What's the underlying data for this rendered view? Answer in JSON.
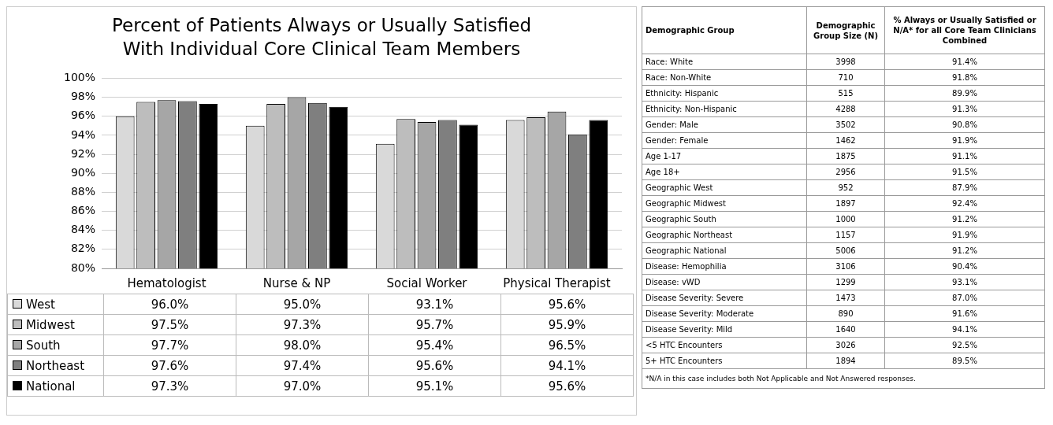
{
  "chart_data": [
    {
      "type": "bar",
      "title": "Percent of Patients Always or Usually Satisfied With Individual Core Clinical Team Members",
      "categories": [
        "Hematologist",
        "Nurse & NP",
        "Social Worker",
        "Physical Therapist"
      ],
      "series": [
        {
          "name": "West",
          "color": "#d9d9d9",
          "values": [
            96.0,
            95.0,
            93.1,
            95.6
          ],
          "value_labels": [
            "96.0%",
            "95.0%",
            "93.1%",
            "95.6%"
          ]
        },
        {
          "name": "Midwest",
          "color": "#bdbdbd",
          "values": [
            97.5,
            97.3,
            95.7,
            95.9
          ],
          "value_labels": [
            "97.5%",
            "97.3%",
            "95.7%",
            "95.9%"
          ]
        },
        {
          "name": "South",
          "color": "#a6a6a6",
          "values": [
            97.7,
            98.0,
            95.4,
            96.5
          ],
          "value_labels": [
            "97.7%",
            "98.0%",
            "95.4%",
            "96.5%"
          ]
        },
        {
          "name": "Northeast",
          "color": "#7f7f7f",
          "values": [
            97.6,
            97.4,
            95.6,
            94.1
          ],
          "value_labels": [
            "97.6%",
            "97.4%",
            "95.6%",
            "94.1%"
          ]
        },
        {
          "name": "National",
          "color": "#000000",
          "values": [
            97.3,
            97.0,
            95.1,
            95.6
          ],
          "value_labels": [
            "97.3%",
            "97.0%",
            "95.1%",
            "95.6%"
          ]
        }
      ],
      "ylim": [
        80,
        100
      ],
      "yticks": [
        {
          "value": 80,
          "label": "80%"
        },
        {
          "value": 82,
          "label": "82%"
        },
        {
          "value": 84,
          "label": "84%"
        },
        {
          "value": 86,
          "label": "86%"
        },
        {
          "value": 88,
          "label": "88%"
        },
        {
          "value": 90,
          "label": "90%"
        },
        {
          "value": 92,
          "label": "92%"
        },
        {
          "value": 94,
          "label": "94%"
        },
        {
          "value": 96,
          "label": "96%"
        },
        {
          "value": 98,
          "label": "98%"
        },
        {
          "value": 100,
          "label": "100%"
        }
      ],
      "grid": "y",
      "legend": "bottom",
      "data_labels": true
    },
    {
      "type": "other",
      "xlabel": "Demographic Group",
      "categories": [
        "Race: White",
        "Race: Non-White",
        "Ethnicity: Hispanic",
        "Ethnicity: Non-Hispanic",
        "Gender: Male",
        "Gender: Female",
        "Age 1-17",
        "Age 18+",
        "Geographic West",
        "Geographic Midwest",
        "Geographic South",
        "Geographic Northeast",
        "Geographic National",
        "Disease: Hemophilia",
        "Disease: vWD",
        "Disease Severity: Severe",
        "Disease Severity: Moderate",
        "Disease Severity: Mild",
        "<5 HTC Encounters",
        "5+ HTC Encounters"
      ],
      "series": [
        {
          "name": "Demographic Group Size (N)",
          "values": [
            3998,
            710,
            515,
            4288,
            3502,
            1462,
            1875,
            2956,
            952,
            1897,
            1000,
            1157,
            5006,
            3106,
            1299,
            1473,
            890,
            1640,
            3026,
            1894
          ]
        },
        {
          "name": "% Always or Usually Satisfied or N/A* for all Core Team Clinicians Combined",
          "values": [
            91.4,
            91.8,
            89.9,
            91.3,
            90.8,
            91.9,
            91.1,
            91.5,
            87.9,
            92.4,
            91.2,
            91.9,
            91.2,
            90.4,
            93.1,
            87.0,
            91.6,
            94.1,
            92.5,
            89.5
          ],
          "value_labels": [
            "91.4%",
            "91.8%",
            "89.9%",
            "91.3%",
            "90.8%",
            "91.9%",
            "91.1%",
            "91.5%",
            "87.9%",
            "92.4%",
            "91.2%",
            "91.9%",
            "91.2%",
            "90.4%",
            "93.1%",
            "87.0%",
            "91.6%",
            "94.1%",
            "92.5%",
            "89.5%"
          ]
        }
      ],
      "data_labels": true,
      "annotations": [
        "*N/A in this case includes both Not Applicable and Not Answered responses."
      ]
    }
  ]
}
